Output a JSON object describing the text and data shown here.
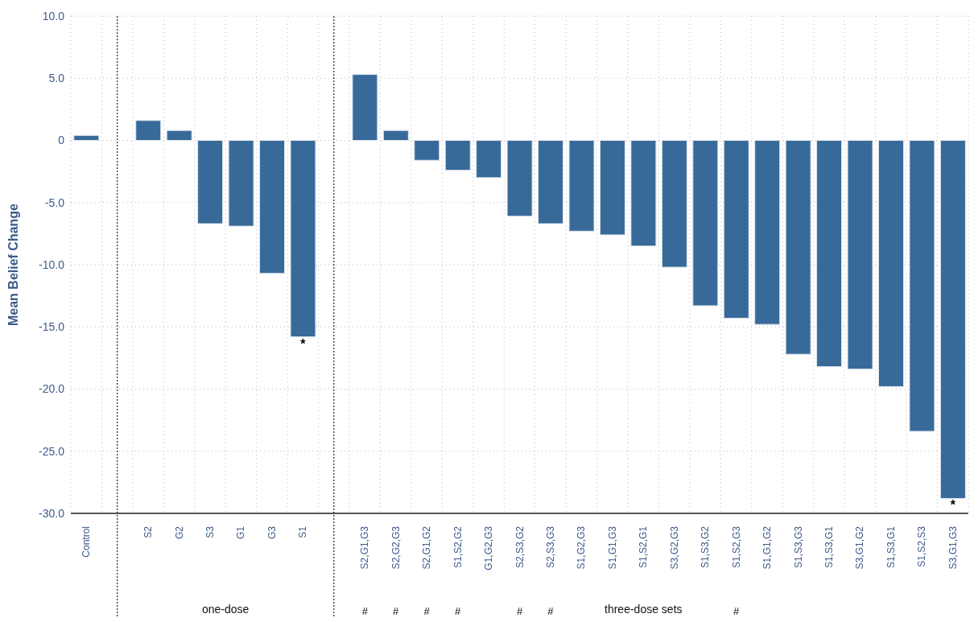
{
  "chart_data": {
    "type": "bar",
    "ylabel": "Mean Belief Change",
    "categories": [
      "Control",
      null,
      "S2",
      "G2",
      "S3",
      "G1",
      "G3",
      "S1",
      null,
      "S2,G1,G3",
      "S2,G2,G3",
      "S2,G1,G2",
      "S1,S2,G2",
      "G1,G2,G3",
      "S2,S3,G2",
      "S2,S3,G3",
      "S1,G2,G3",
      "S1,G1,G3",
      "S1,S2,G1",
      "S3,G2,G3",
      "S1,S3,G2",
      "S1,S2,G3",
      "S1,G1,G2",
      "S1,S3,G3",
      "S1,S3,G1",
      "S3,G1,G2",
      "S1,S3,G1",
      "S1,S2,S3",
      "S3,G1,G3"
    ],
    "values": [
      0.4,
      null,
      1.6,
      0.8,
      -6.7,
      -6.9,
      -10.7,
      -15.8,
      null,
      5.3,
      0.8,
      -1.6,
      -2.4,
      -3.0,
      -6.1,
      -6.7,
      -7.3,
      -7.6,
      -8.5,
      -10.2,
      -13.3,
      -14.3,
      -14.8,
      -17.2,
      -18.2,
      -18.4,
      -19.8,
      -23.4,
      -28.8
    ],
    "color": "#386a99",
    "ylim": [
      -30,
      10
    ],
    "yticks": [
      {
        "value": -30,
        "label": "-30.0"
      },
      {
        "value": -25,
        "label": "-25.0"
      },
      {
        "value": -20,
        "label": "-20.0"
      },
      {
        "value": -15,
        "label": "-15.0"
      },
      {
        "value": -10,
        "label": "-10.0"
      },
      {
        "value": -5,
        "label": "-5.0"
      },
      0,
      {
        "value": 5,
        "label": "5.0"
      },
      {
        "value": 10,
        "label": "10.0"
      }
    ],
    "grid": true,
    "annotations": [
      "one-dose",
      "three-dose sets",
      {
        "text": "*",
        "x": "S1",
        "y": -15.8
      },
      {
        "text": "*",
        "x": "S3,G1,G3",
        "y": -28.8
      },
      "#",
      "#",
      "#",
      "#",
      "#",
      "#",
      "#"
    ]
  }
}
